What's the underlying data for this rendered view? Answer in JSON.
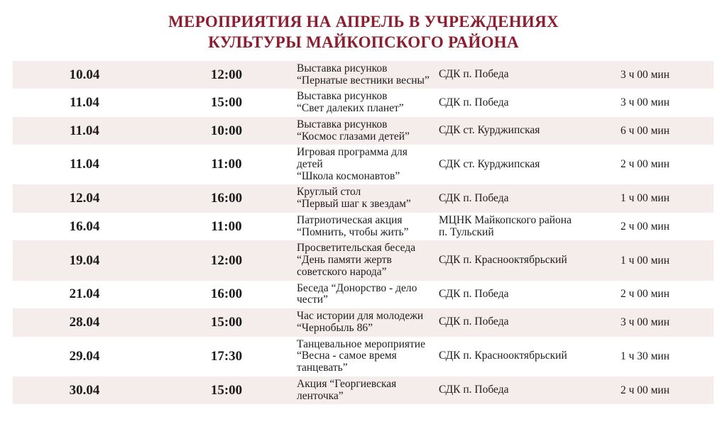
{
  "colors": {
    "accent": "#8b1e2f",
    "stripe": "#f5ecec"
  },
  "title": {
    "line1": "МЕРОПРИЯТИЯ НА АПРЕЛЬ В УЧРЕЖДЕНИЯХ",
    "line2": "КУЛЬТУРЫ МАЙКОПСКОГО РАЙОНА"
  },
  "table": {
    "rows": [
      {
        "date": "10.04",
        "time": "12:00",
        "event": "Выставка рисунков\n“Пернатые вестники весны”",
        "venue": "СДК п. Победа",
        "duration": "3 ч 00 мин"
      },
      {
        "date": "11.04",
        "time": "15:00",
        "event": "Выставка рисунков\n“Свет далеких планет”",
        "venue": "СДК п. Победа",
        "duration": "3 ч 00 мин"
      },
      {
        "date": "11.04",
        "time": "10:00",
        "event": "Выставка рисунков\n“Космос глазами детей”",
        "venue": "СДК ст. Курджипская",
        "duration": "6 ч 00 мин"
      },
      {
        "date": "11.04",
        "time": "11:00",
        "event": "Игровая программа для детей\n“Школа космонавтов”",
        "venue": "СДК ст. Курджипская",
        "duration": "2 ч 00 мин"
      },
      {
        "date": "12.04",
        "time": "16:00",
        "event": "Круглый стол\n“Первый шаг к звездам”",
        "venue": "СДК п. Победа",
        "duration": "1 ч 00 мин"
      },
      {
        "date": "16.04",
        "time": "11:00",
        "event": "Патриотическая акция\n“Помнить, чтобы жить”",
        "venue": "МЦНК Майкопского района\nп. Тульский",
        "duration": "2 ч 00 мин"
      },
      {
        "date": "19.04",
        "time": "12:00",
        "event": "Просветительская беседа\n“День памяти жертв\nсоветского народа”",
        "venue": "СДК п. Краснооктябрьский",
        "duration": "1 ч 00 мин"
      },
      {
        "date": "21.04",
        "time": "16:00",
        "event": "Беседа “Донорство - дело\nчести”",
        "venue": "СДК п. Победа",
        "duration": "2 ч 00 мин"
      },
      {
        "date": "28.04",
        "time": "15:00",
        "event": "Час истории для молодежи\n“Чернобыль 86”",
        "venue": "СДК п. Победа",
        "duration": "3 ч 00 мин"
      },
      {
        "date": "29.04",
        "time": "17:30",
        "event": "Танцевальное мероприятие\n“Весна - самое время\nтанцевать”",
        "venue": "СДК п. Краснооктябрьский",
        "duration": "1 ч 30 мин"
      },
      {
        "date": "30.04",
        "time": "15:00",
        "event": "Акция “Георгиевская\nленточка”",
        "venue": "СДК п. Победа",
        "duration": "2 ч 00 мин"
      }
    ]
  }
}
